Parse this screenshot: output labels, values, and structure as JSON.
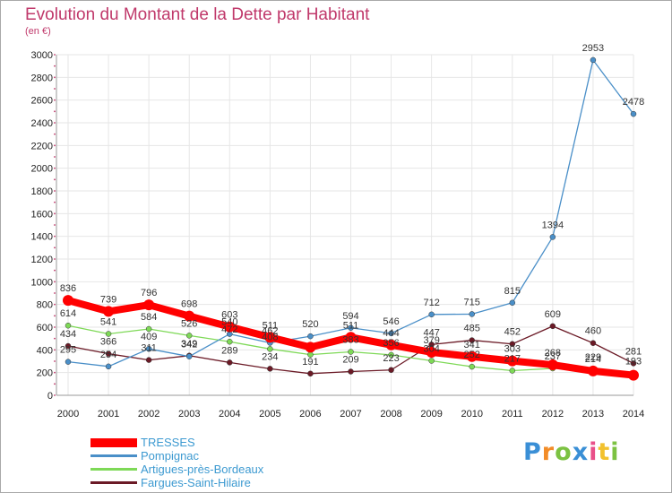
{
  "chart_data": {
    "type": "line",
    "title": "Evolution du Montant de la Dette par Habitant",
    "subtitle": "(en €)",
    "categories": [
      "2000",
      "2001",
      "2002",
      "2003",
      "2004",
      "2005",
      "2006",
      "2007",
      "2008",
      "2009",
      "2010",
      "2011",
      "2012",
      "2013",
      "2014"
    ],
    "ylim": [
      0,
      3000
    ],
    "yticks": [
      0,
      200,
      400,
      600,
      800,
      1000,
      1200,
      1400,
      1600,
      1800,
      2000,
      2200,
      2400,
      2600,
      2800,
      3000
    ],
    "series": [
      {
        "name": "TRESSES",
        "color": "#ff0000",
        "values": [
          836,
          739,
          796,
          698,
          603,
          511,
          423,
          511,
          444,
          379,
          341,
          303,
          268,
          214,
          177
        ]
      },
      {
        "name": "Pompignac",
        "color": "#4a8fc8",
        "values": [
          295,
          254,
          409,
          342,
          540,
          462,
          520,
          594,
          546,
          712,
          715,
          815,
          1394,
          2953,
          2478
        ]
      },
      {
        "name": "Artigues-près-Bordeaux",
        "color": "#7ed957",
        "values": [
          614,
          541,
          584,
          526,
          472,
          408,
          358,
          383,
          356,
          304,
          252,
          217,
          237,
          229,
          193
        ]
      },
      {
        "name": "Fargues-Saint-Hilaire",
        "color": "#6b1a26",
        "values": [
          434,
          366,
          311,
          349,
          289,
          234,
          191,
          209,
          223,
          447,
          485,
          452,
          609,
          460,
          281
        ]
      }
    ],
    "labels_visible": {
      "TRESSES": [
        836,
        739,
        796,
        698,
        603,
        511,
        null,
        511,
        444,
        379,
        341,
        303,
        268,
        214,
        null
      ],
      "Pompignac": [
        295,
        254,
        409,
        342,
        540,
        462,
        520,
        594,
        546,
        712,
        715,
        815,
        1394,
        2953,
        2478
      ],
      "Artigues-près-Bordeaux": [
        614,
        541,
        584,
        526,
        472,
        408,
        null,
        383,
        356,
        304,
        252,
        217,
        237,
        229,
        193
      ],
      "Fargues-Saint-Hilaire": [
        434,
        366,
        311,
        349,
        289,
        234,
        191,
        209,
        223,
        447,
        485,
        452,
        609,
        460,
        281
      ]
    },
    "legend": "bottom-left"
  },
  "logo": {
    "text": "Proxiti"
  }
}
